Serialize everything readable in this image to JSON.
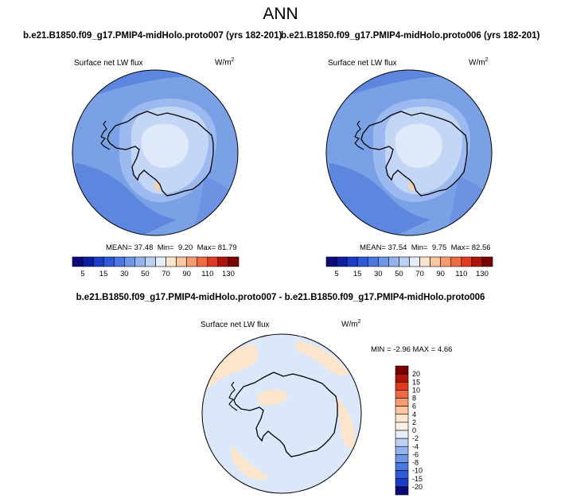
{
  "page": {
    "title": "ANN",
    "diff_title": "b.e21.B1850.f09_g17.PMIP4-midHolo.proto007 - b.e21.B1850.f09_g17.PMIP4-midHolo.proto006"
  },
  "chart_data": [
    {
      "type": "heatmap",
      "projection": "south-polar-stereographic",
      "title": "b.e21.B1850.f09_g17.PMIP4-midHolo.proto007 (yrs 182-201)",
      "variable": "Surface net LW flux",
      "units_base": "W/m",
      "units_exp": "2",
      "stats": {
        "mean_label": "MEAN=",
        "mean": "37.48",
        "min_label": "Min=",
        "min": "9.20",
        "max_label": "Max=",
        "max": "81.79"
      },
      "colorbar": {
        "orientation": "horizontal",
        "levels": [
          "5",
          "10",
          "15",
          "20",
          "30",
          "40",
          "50",
          "60",
          "70",
          "80",
          "90",
          "100",
          "110",
          "120",
          "130"
        ],
        "tick_labels": [
          "5",
          "15",
          "30",
          "50",
          "70",
          "90",
          "110",
          "130"
        ],
        "colors": [
          "#0a0a78",
          "#0d1ea0",
          "#1a3cc8",
          "#2e5ad8",
          "#4a78e2",
          "#6e96e8",
          "#94b2ee",
          "#bcd0f4",
          "#e6eefa",
          "#fde4cc",
          "#fcc6a0",
          "#f89c70",
          "#f26a44",
          "#e03a1e",
          "#b01408",
          "#7a0000"
        ]
      }
    },
    {
      "type": "heatmap",
      "projection": "south-polar-stereographic",
      "title": "b.e21.B1850.f09_g17.PMIP4-midHolo.proto006 (yrs 182-201)",
      "variable": "Surface net LW flux",
      "units_base": "W/m",
      "units_exp": "2",
      "stats": {
        "mean_label": "MEAN=",
        "mean": "37.54",
        "min_label": "Min=",
        "min": "9.75",
        "max_label": "Max=",
        "max": "82.56"
      },
      "colorbar": {
        "orientation": "horizontal",
        "levels": [
          "5",
          "10",
          "15",
          "20",
          "30",
          "40",
          "50",
          "60",
          "70",
          "80",
          "90",
          "100",
          "110",
          "120",
          "130"
        ],
        "tick_labels": [
          "5",
          "15",
          "30",
          "50",
          "70",
          "90",
          "110",
          "130"
        ],
        "colors": [
          "#0a0a78",
          "#0d1ea0",
          "#1a3cc8",
          "#2e5ad8",
          "#4a78e2",
          "#6e96e8",
          "#94b2ee",
          "#bcd0f4",
          "#e6eefa",
          "#fde4cc",
          "#fcc6a0",
          "#f89c70",
          "#f26a44",
          "#e03a1e",
          "#b01408",
          "#7a0000"
        ]
      }
    },
    {
      "type": "heatmap",
      "projection": "south-polar-stereographic",
      "title": "b.e21.B1850.f09_g17.PMIP4-midHolo.proto007 - b.e21.B1850.f09_g17.PMIP4-midHolo.proto006",
      "variable": "Surface net LW flux",
      "units_base": "W/m",
      "units_exp": "2",
      "stats": {
        "min_label": "MIN =",
        "min": "-2.96",
        "max_label": "MAX =",
        "max": "4.66"
      },
      "colorbar": {
        "orientation": "vertical",
        "levels": [
          "20",
          "15",
          "10",
          "8",
          "6",
          "4",
          "2",
          "0",
          "-2",
          "-4",
          "-6",
          "-8",
          "-10",
          "-15",
          "-20"
        ],
        "colors": [
          "#7a0000",
          "#b01408",
          "#e03a1e",
          "#f26a44",
          "#f89c70",
          "#fcc6a0",
          "#fde4cc",
          "#fdf0e4",
          "#e6eefa",
          "#bcd0f4",
          "#94b2ee",
          "#6e96e8",
          "#4a78e2",
          "#2e5ad8",
          "#1a3cc8",
          "#0a0a78"
        ]
      }
    }
  ]
}
